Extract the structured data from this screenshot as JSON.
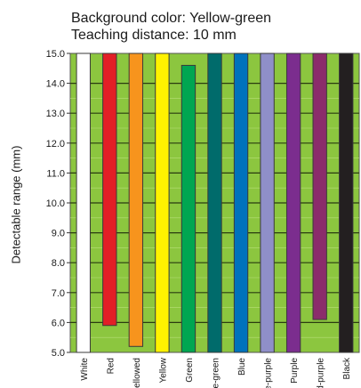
{
  "title_lines": [
    "Background color: Yellow-green",
    "Teaching distance: 10 mm"
  ],
  "chart_data": {
    "type": "bar",
    "title": "Background color: Yellow-green",
    "subtitle": "Teaching distance: 10 mm",
    "ylabel": "Detectable range (mm)",
    "xlabel": "",
    "ylim": [
      5.0,
      15.0
    ],
    "yticks": [
      "5.0",
      "6.0",
      "7.0",
      "8.0",
      "9.0",
      "10.0",
      "11.0",
      "12.0",
      "13.0",
      "14.0",
      "15.0"
    ],
    "grid": true,
    "background_color": "#8cc63f",
    "categories": [
      "White",
      "Red",
      "Yellowed",
      "Yellow",
      "Green",
      "Blue-green",
      "Blue",
      "Blue-purple",
      "Purple",
      "Red-purple",
      "Black"
    ],
    "tick_labels": [
      "White",
      "Red",
      "ellowed",
      "Yellow",
      "Green",
      "ue-green",
      "Blue",
      "e-purple",
      "Purple",
      "d-purple",
      "Black"
    ],
    "series": [
      {
        "ranges": [
          [
            5.0,
            15.0
          ],
          [
            5.9,
            15.0
          ],
          [
            5.2,
            15.0
          ],
          [
            5.0,
            15.0
          ],
          [
            5.0,
            14.6
          ],
          [
            5.0,
            15.0
          ],
          [
            5.0,
            15.0
          ],
          [
            5.0,
            15.0
          ],
          [
            5.0,
            15.0
          ],
          [
            6.1,
            15.0
          ],
          [
            5.0,
            15.0
          ]
        ]
      }
    ],
    "bar_colors": [
      "#ffffff",
      "#e21f26",
      "#f7941d",
      "#fff200",
      "#00a651",
      "#006b6b",
      "#0072bc",
      "#8f8fc9",
      "#7b2d8e",
      "#8b2c6b",
      "#231f20"
    ]
  }
}
